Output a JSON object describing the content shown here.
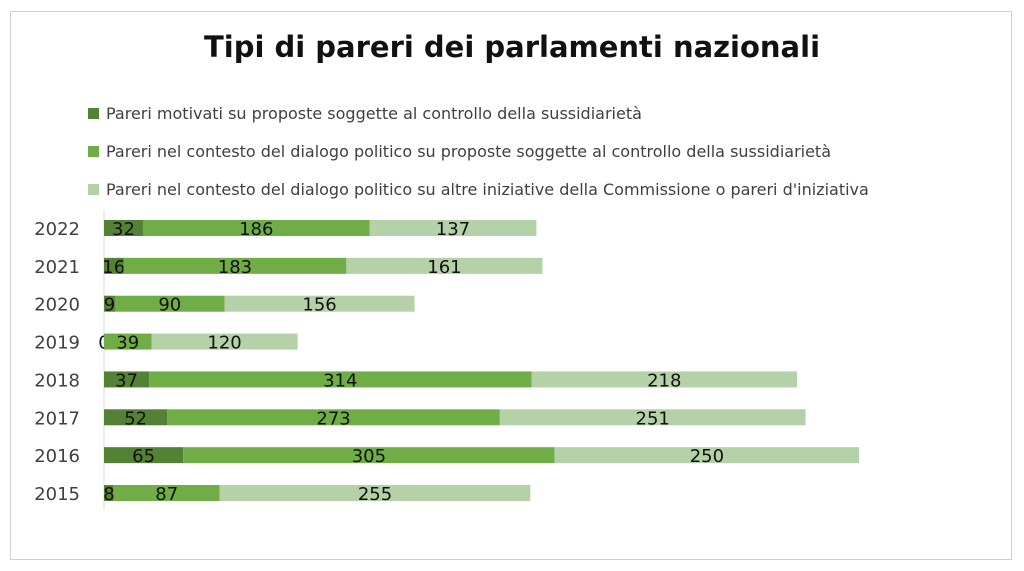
{
  "chart_data": {
    "type": "bar",
    "orientation": "horizontal",
    "stacked": true,
    "title": "Tipi di pareri dei parlamenti nazionali",
    "categories": [
      "2022",
      "2021",
      "2020",
      "2019",
      "2018",
      "2017",
      "2016",
      "2015"
    ],
    "series": [
      {
        "name": "Pareri motivati su proposte soggette al controllo della sussidiarietà",
        "color": "#548235",
        "values": [
          32,
          16,
          9,
          0,
          37,
          52,
          65,
          8
        ]
      },
      {
        "name": "Pareri nel contesto del dialogo politico su proposte soggette al controllo della sussidiarietà",
        "color": "#70ad47",
        "values": [
          186,
          183,
          90,
          39,
          314,
          273,
          305,
          87
        ]
      },
      {
        "name": "Pareri nel contesto del dialogo politico su altre iniziative della Commissione o pareri d'iniziativa",
        "color": "#b5d1a8",
        "values": [
          137,
          161,
          156,
          120,
          218,
          251,
          250,
          255
        ]
      }
    ],
    "legend_position": "top",
    "grid": false
  }
}
